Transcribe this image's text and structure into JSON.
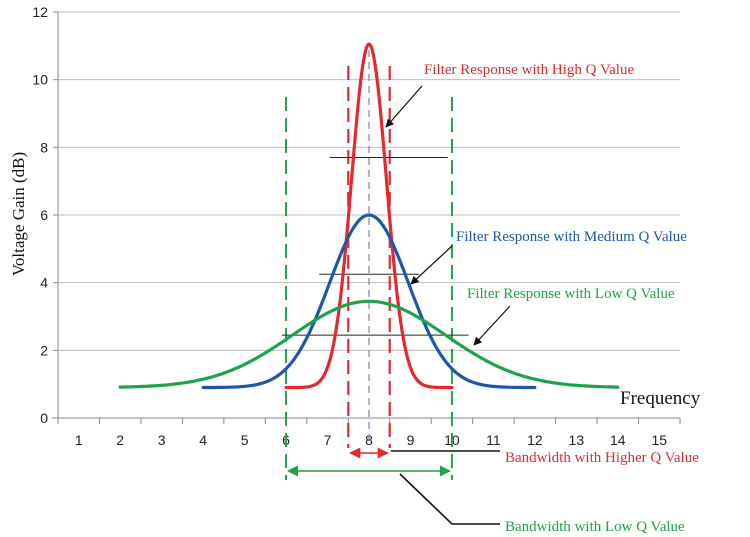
{
  "chart_data": {
    "type": "line",
    "xlabel": "Frequency",
    "ylabel": "Voltage Gain (dB)",
    "xlim": [
      0.5,
      15.5
    ],
    "ylim": [
      0,
      12
    ],
    "x_ticks": [
      1,
      2,
      3,
      4,
      5,
      6,
      7,
      8,
      9,
      10,
      11,
      12,
      13,
      14,
      15
    ],
    "y_ticks": [
      0,
      2,
      4,
      6,
      8,
      10,
      12
    ],
    "grid": "horizontal",
    "series": [
      {
        "key": "high",
        "color": "#e3282e",
        "peak_x": 8,
        "peak_y": 11.05,
        "base_y": 0.9,
        "sigma": 0.42,
        "x_start": 6,
        "x_end": 10
      },
      {
        "key": "medium",
        "color": "#1f57a8",
        "peak_x": 8,
        "peak_y": 6.0,
        "base_y": 0.9,
        "sigma": 0.95,
        "x_start": 4,
        "x_end": 12
      },
      {
        "key": "low",
        "color": "#1ea34a",
        "peak_x": 8,
        "peak_y": 3.45,
        "base_y": 0.9,
        "sigma": 1.85,
        "x_start": 2,
        "x_end": 14
      }
    ],
    "bandwidth_markers": [
      {
        "key": "high",
        "color": "#e3282e",
        "x1": 7.5,
        "x2": 8.5,
        "level_y": 7.7
      },
      {
        "key": "medium",
        "color": "#1f57a8",
        "x1": 7.1,
        "x2": 8.9,
        "level_y": 4.25
      },
      {
        "key": "low",
        "color": "#1ea34a",
        "x1": 6.0,
        "x2": 10.0,
        "level_y": 2.45
      }
    ],
    "annotations": {
      "high_q": "Filter Response with High Q Value",
      "medium_q": "Filter Response with Medium Q Value",
      "low_q": "Filter Response with Low Q Value",
      "bw_high": "Bandwidth with Higher Q Value",
      "bw_low": "Bandwidth with Low Q Value"
    },
    "colors": {
      "high": "#e3282e",
      "medium": "#1f57a8",
      "low": "#1ea34a",
      "center": "#7b7fb8"
    }
  }
}
